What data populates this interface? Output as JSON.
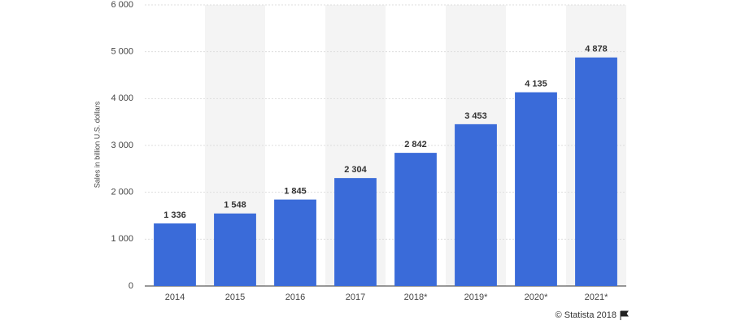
{
  "chart_data": {
    "type": "bar",
    "y_label": "Sales in billion U.S. dollars",
    "credit": "© Statista 2018",
    "categories": [
      "2014",
      "2015",
      "2016",
      "2017",
      "2018*",
      "2019*",
      "2020*",
      "2021*"
    ],
    "values": [
      1336,
      1548,
      1845,
      2304,
      2842,
      3453,
      4135,
      4878
    ],
    "value_labels": [
      "1 336",
      "1 548",
      "1 845",
      "2 304",
      "2 842",
      "3 453",
      "4 135",
      "4 878"
    ],
    "color": "#3a6bd9",
    "ylim": [
      0,
      6000
    ],
    "yticks": [
      0,
      {
        "value": 1000,
        "label": "1 000"
      },
      {
        "value": 2000,
        "label": "2 000"
      },
      {
        "value": 3000,
        "label": "3 000"
      },
      {
        "value": 4000,
        "label": "4 000"
      },
      {
        "value": 5000,
        "label": "5 000"
      },
      {
        "value": 6000,
        "label": "6 000"
      }
    ],
    "grid": true
  }
}
